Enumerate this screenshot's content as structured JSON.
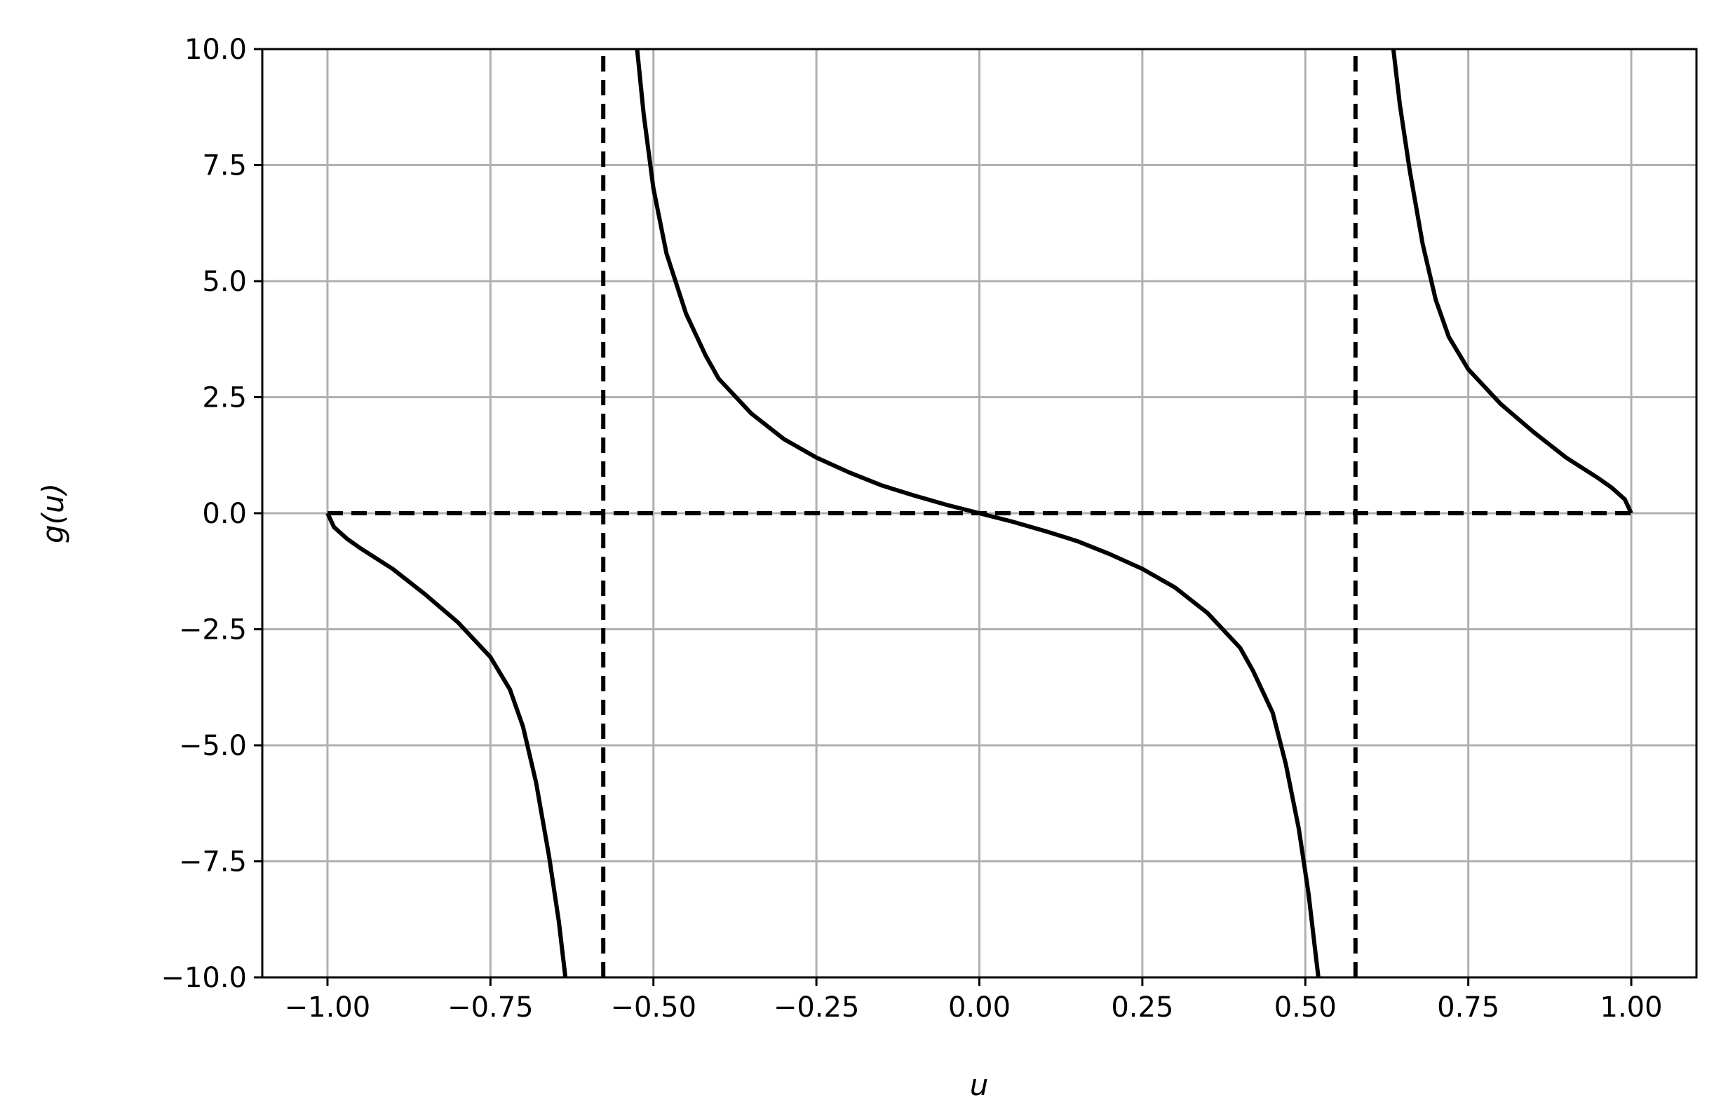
{
  "chart_data": {
    "type": "line",
    "title": "",
    "xlabel": "u",
    "ylabel": "g(u)",
    "xlim": [
      -1.1,
      1.1
    ],
    "ylim": [
      -10,
      10
    ],
    "grid": true,
    "legend": "none",
    "x_ticks": [
      -1.0,
      -0.75,
      -0.5,
      -0.25,
      0.0,
      0.25,
      0.5,
      0.75,
      1.0
    ],
    "x_tick_labels": [
      "−1.00",
      "−0.75",
      "−0.50",
      "−0.25",
      "0.00",
      "0.25",
      "0.50",
      "0.75",
      "1.00"
    ],
    "y_ticks": [
      -10,
      -7.5,
      -5,
      -2.5,
      0,
      2.5,
      5,
      7.5,
      10
    ],
    "y_tick_labels": [
      "−10.0",
      "−7.5",
      "−5.0",
      "−2.5",
      "0.0",
      "2.5",
      "5.0",
      "7.5",
      "10.0"
    ],
    "colors": {
      "curve": "#000000",
      "grid": "#b0b0b0",
      "axes": "#000000"
    },
    "series": [
      {
        "style": "solid",
        "segments": [
          [
            [
              -1.0,
              0.0
            ],
            [
              -0.99,
              -0.3
            ],
            [
              -0.97,
              -0.55
            ],
            [
              -0.95,
              -0.75
            ],
            [
              -0.9,
              -1.2
            ],
            [
              -0.85,
              -1.75
            ],
            [
              -0.8,
              -2.35
            ],
            [
              -0.75,
              -3.1
            ],
            [
              -0.72,
              -3.8
            ],
            [
              -0.7,
              -4.6
            ],
            [
              -0.68,
              -5.8
            ],
            [
              -0.66,
              -7.4
            ],
            [
              -0.645,
              -8.8
            ],
            [
              -0.635,
              -10.0
            ]
          ],
          [
            [
              -0.525,
              10.0
            ],
            [
              -0.515,
              8.6
            ],
            [
              -0.5,
              7.0
            ],
            [
              -0.48,
              5.6
            ],
            [
              -0.45,
              4.3
            ],
            [
              -0.42,
              3.4
            ],
            [
              -0.4,
              2.9
            ],
            [
              -0.35,
              2.15
            ],
            [
              -0.3,
              1.6
            ],
            [
              -0.25,
              1.2
            ],
            [
              -0.2,
              0.88
            ],
            [
              -0.15,
              0.6
            ],
            [
              -0.1,
              0.38
            ],
            [
              -0.05,
              0.18
            ],
            [
              0.0,
              0.0
            ],
            [
              0.05,
              -0.18
            ],
            [
              0.1,
              -0.38
            ],
            [
              0.15,
              -0.6
            ],
            [
              0.2,
              -0.88
            ],
            [
              0.25,
              -1.2
            ],
            [
              0.3,
              -1.6
            ],
            [
              0.35,
              -2.15
            ],
            [
              0.4,
              -2.9
            ],
            [
              0.42,
              -3.4
            ],
            [
              0.45,
              -4.3
            ],
            [
              0.47,
              -5.4
            ],
            [
              0.49,
              -6.8
            ],
            [
              0.505,
              -8.2
            ],
            [
              0.515,
              -9.4
            ],
            [
              0.52,
              -10.0
            ]
          ],
          [
            [
              0.635,
              10.0
            ],
            [
              0.645,
              8.8
            ],
            [
              0.66,
              7.4
            ],
            [
              0.68,
              5.8
            ],
            [
              0.7,
              4.6
            ],
            [
              0.72,
              3.8
            ],
            [
              0.75,
              3.1
            ],
            [
              0.8,
              2.35
            ],
            [
              0.85,
              1.75
            ],
            [
              0.9,
              1.2
            ],
            [
              0.95,
              0.75
            ],
            [
              0.97,
              0.55
            ],
            [
              0.99,
              0.3
            ],
            [
              1.0,
              0.0
            ]
          ]
        ]
      },
      {
        "style": "dashed",
        "segments": [
          [
            [
              -1.0,
              0.0
            ],
            [
              1.0,
              0.0
            ]
          ]
        ]
      },
      {
        "style": "dashed",
        "segments": [
          [
            [
              -0.577,
              -10.0
            ],
            [
              -0.577,
              10.0
            ]
          ]
        ]
      },
      {
        "style": "dashed",
        "segments": [
          [
            [
              0.577,
              -10.0
            ],
            [
              0.577,
              10.0
            ]
          ]
        ]
      }
    ]
  }
}
